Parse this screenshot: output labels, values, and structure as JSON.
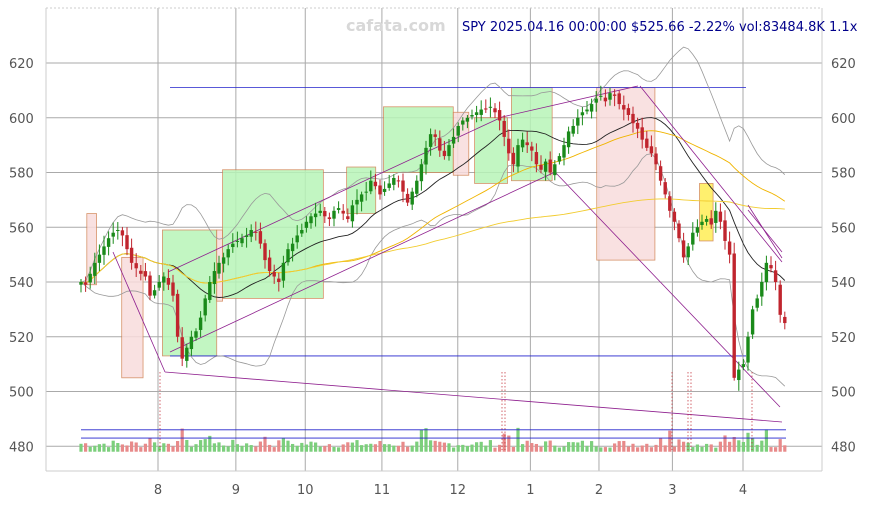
{
  "watermark": "cafata.com",
  "header": "SPY 2025.04.16 00:00:00 $525.66 -2.22% vol:83484.8K 1.1x",
  "chart_data": {
    "type": "candlestick",
    "symbol": "SPY",
    "last_close": 525.66,
    "y_range": [
      472,
      637
    ],
    "y_ticks": [
      480,
      500,
      520,
      540,
      560,
      580,
      600,
      620
    ],
    "x_tick_labels": [
      "8",
      "9",
      "10",
      "11",
      "12",
      "1",
      "2",
      "3",
      "4"
    ],
    "x_tick_positions": [
      22.2,
      41.5,
      58.7,
      77.7,
      96.5,
      114.5,
      131.5,
      149.7,
      167.2
    ],
    "x_range": [
      0,
      190
    ],
    "closes": [
      540,
      539,
      543,
      547,
      550,
      553,
      556,
      558,
      559,
      557,
      552,
      547,
      545,
      543,
      542,
      535,
      537,
      540,
      542,
      539,
      535,
      520,
      512,
      516,
      520,
      522,
      527,
      534,
      540,
      544,
      547,
      549,
      552,
      554,
      555,
      556,
      557,
      559,
      558,
      554,
      548,
      544,
      542,
      540,
      547,
      552,
      554,
      557,
      559,
      562,
      564,
      565,
      566,
      564,
      563,
      566,
      567,
      565,
      563,
      568,
      570,
      572,
      573,
      577,
      575,
      572,
      574,
      576,
      578,
      577,
      573,
      569,
      573,
      577,
      583,
      589,
      594,
      593,
      588,
      586,
      590,
      593,
      597,
      599,
      600,
      601,
      602,
      603,
      603,
      604,
      602,
      599,
      593,
      587,
      583,
      590,
      592,
      590,
      588,
      583,
      581,
      584,
      580,
      583,
      586,
      590,
      595,
      597,
      600,
      602,
      603,
      605,
      607,
      608,
      606,
      609,
      608,
      605,
      603,
      601,
      598,
      596,
      592,
      589,
      587,
      583,
      577,
      572,
      566,
      562,
      556,
      549,
      553,
      558,
      560,
      562,
      563,
      561,
      566,
      562,
      555,
      550,
      505,
      508,
      510,
      520,
      530,
      534,
      540,
      547,
      545,
      540,
      528,
      525
    ],
    "horizontal_levels": [
      611,
      513,
      483,
      486
    ],
    "volume_baseline": 478,
    "colors": {
      "up": "#1a8a1a",
      "down": "#c0252e",
      "ma_short": "#222222",
      "ma_mid": "#f0b400",
      "ma_long": "#f2cc30",
      "band": "#999999",
      "trend": "#8e1f8e",
      "level": "#2222cc",
      "box_up": "#b8f5b8",
      "box_down": "#f9dcdc",
      "box_yellow": "#ffee55"
    }
  }
}
